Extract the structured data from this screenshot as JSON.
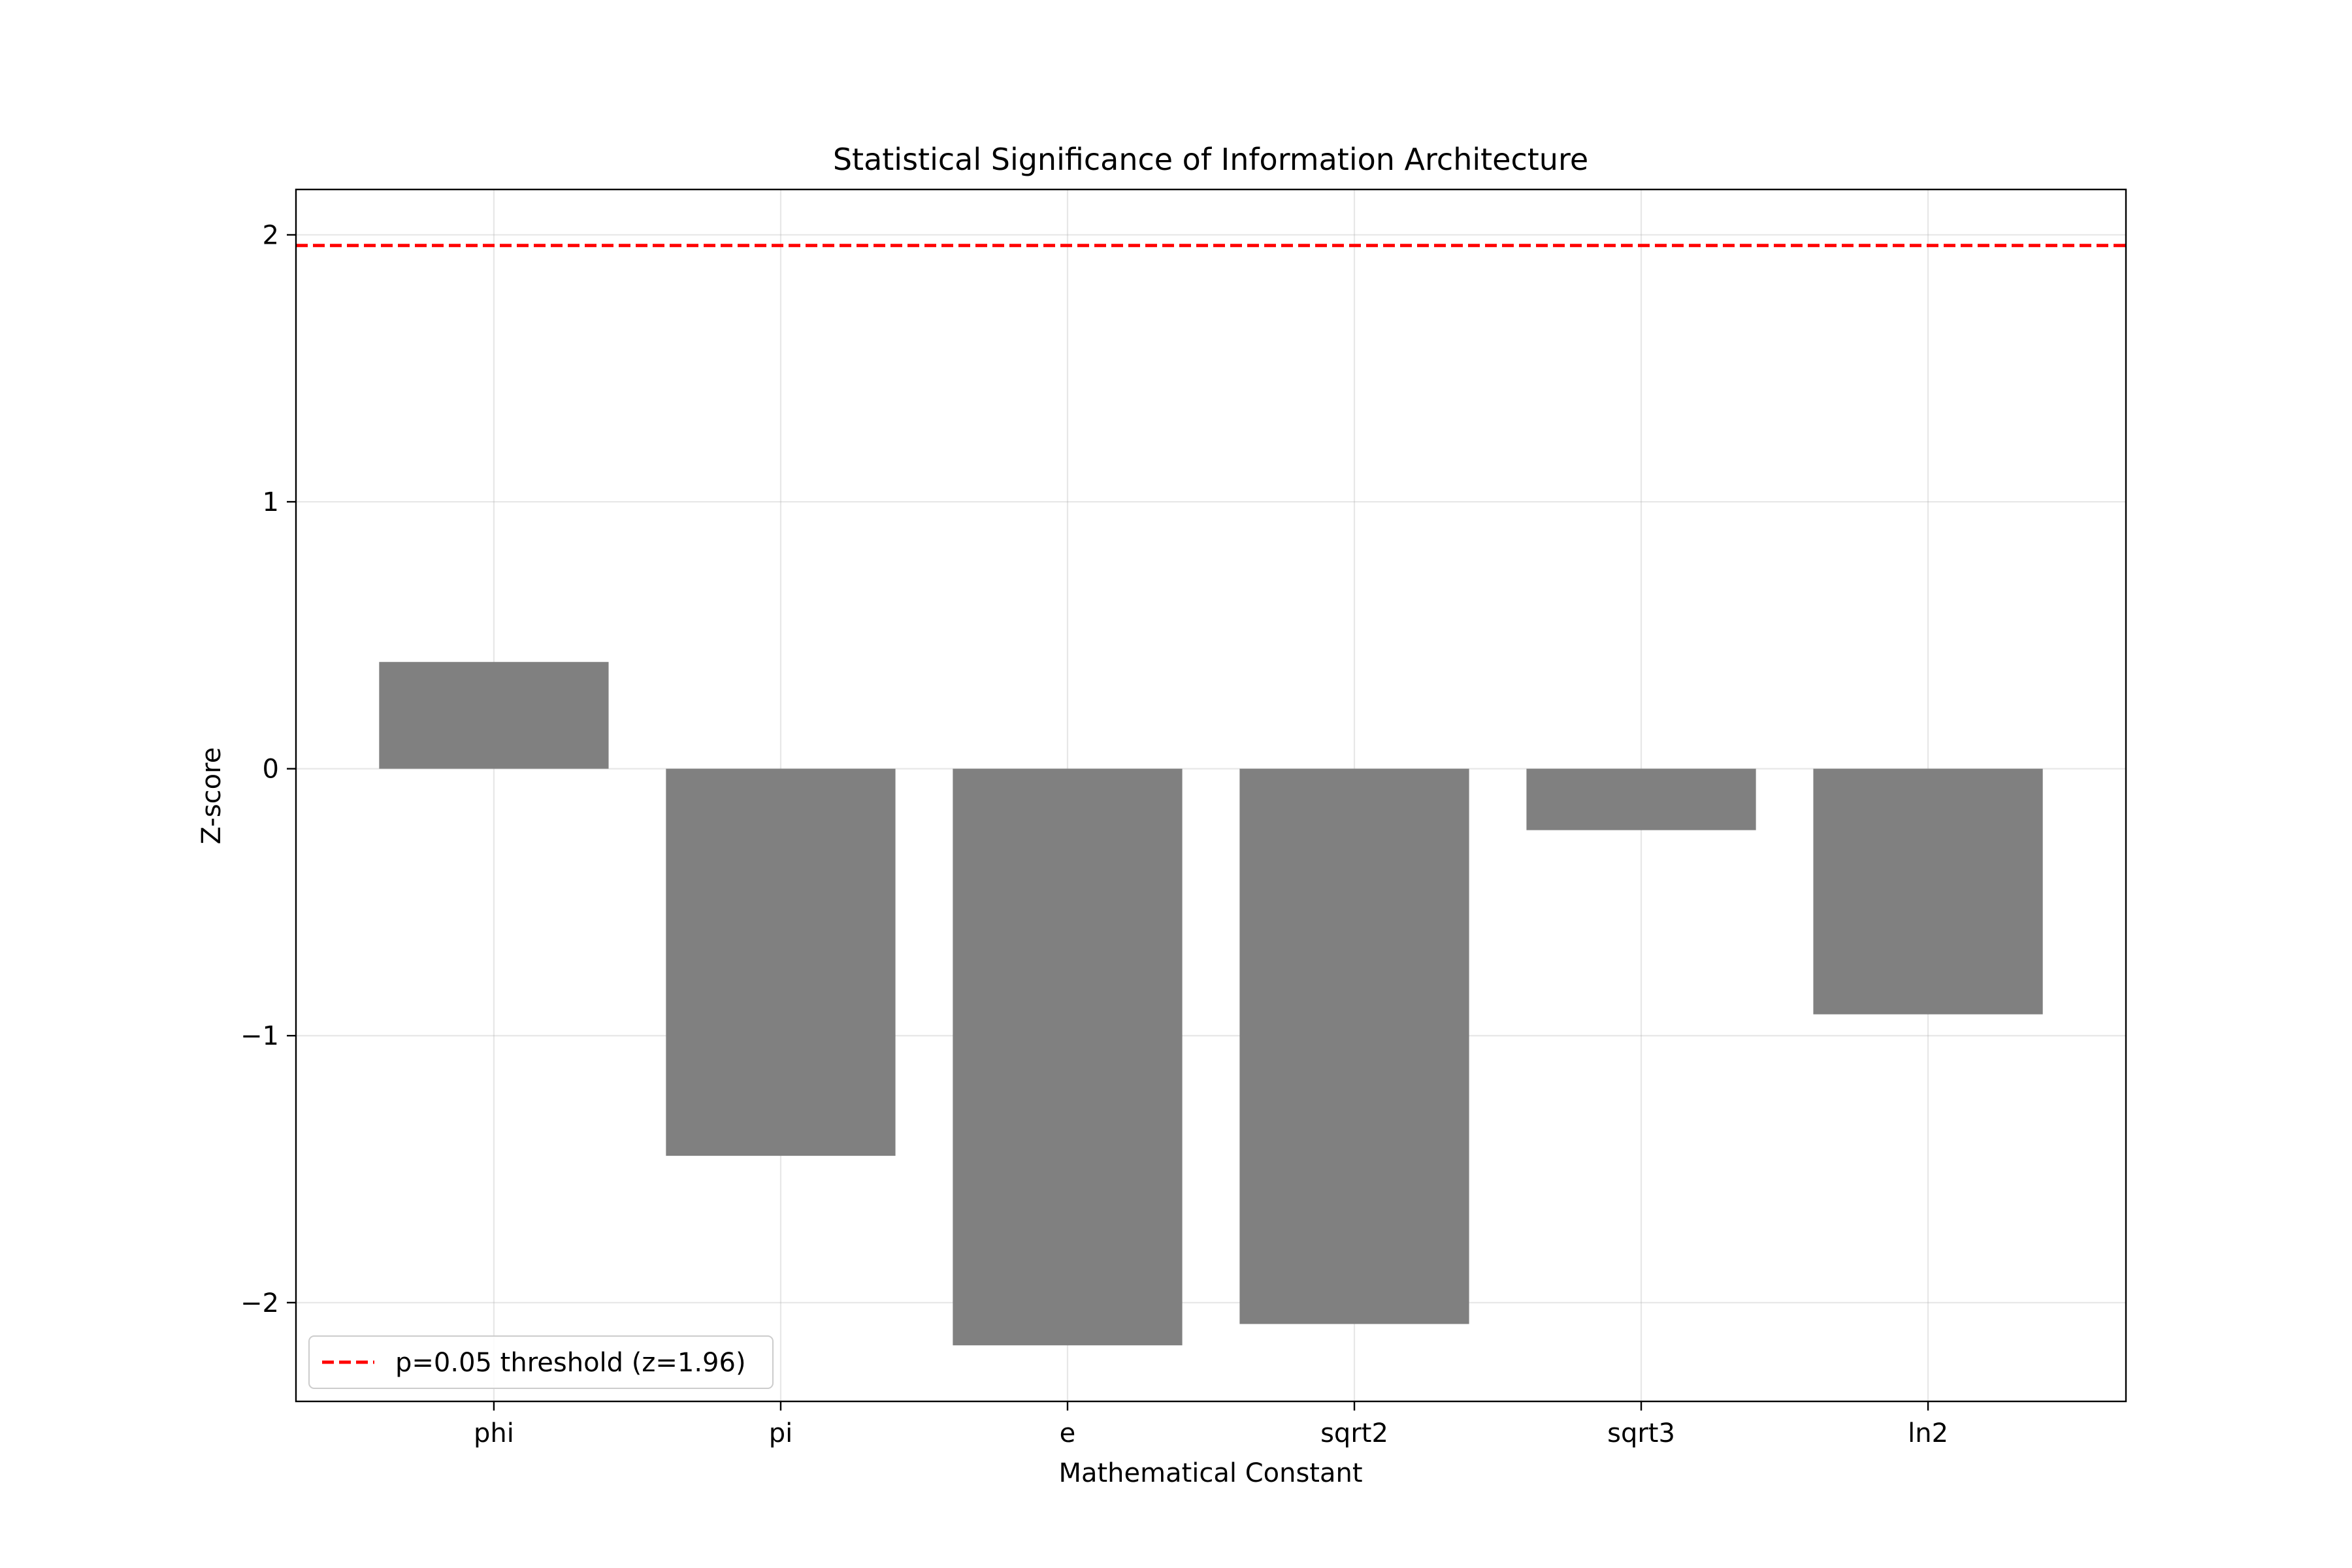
{
  "chart_data": {
    "type": "bar",
    "title": "Statistical Significance of Information Architecture",
    "xlabel": "Mathematical Constant",
    "ylabel": "Z-score",
    "categories": [
      "phi",
      "pi",
      "e",
      "sqrt2",
      "sqrt3",
      "ln2"
    ],
    "values": [
      0.4,
      -1.45,
      -2.16,
      -2.08,
      -0.23,
      -0.92
    ],
    "ylim": [
      -2.37,
      2.17
    ],
    "yticks": [
      2,
      1,
      0,
      -1,
      -2
    ],
    "ytick_labels": [
      "2",
      "1",
      "0",
      "−1",
      "−2"
    ],
    "grid": true,
    "bar_color": "#808080",
    "reference_line": {
      "y": 1.96,
      "label": "p=0.05 threshold (z=1.96)",
      "color": "#ff0000",
      "style": "dashed"
    },
    "legend_placement": "lower-left"
  }
}
